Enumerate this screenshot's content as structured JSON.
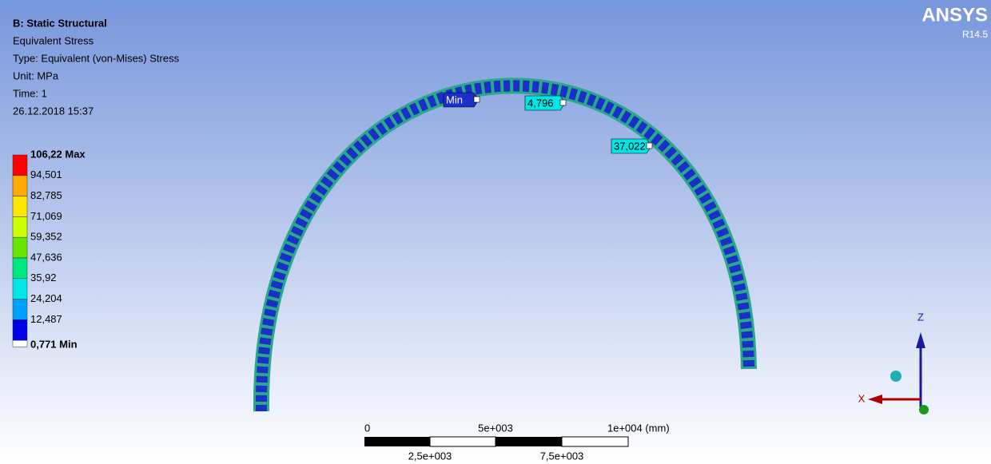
{
  "header": {
    "title": "B: Static Structural",
    "lines": [
      "Equivalent Stress",
      "Type: Equivalent (von-Mises) Stress",
      "Unit: MPa",
      "Time: 1",
      "26.12.2018 15:37"
    ]
  },
  "logo": {
    "name": "ANSYS",
    "version": "R14.5"
  },
  "legend": {
    "labels": [
      "106,22 Max",
      "94,501",
      "82,785",
      "71,069",
      "59,352",
      "47,636",
      "35,92",
      "24,204",
      "12,487",
      "0,771 Min"
    ],
    "colors": [
      "#ff0000",
      "#ffaa00",
      "#ffe600",
      "#ccff00",
      "#66e600",
      "#00e680",
      "#00e6e6",
      "#00a0ff",
      "#0000e6"
    ]
  },
  "probes": [
    {
      "label": "Min"
    },
    {
      "label": "4,796"
    },
    {
      "label": "37,022"
    }
  ],
  "scale_bar": {
    "top_labels": [
      "0",
      "5e+003",
      "1e+004 (mm)"
    ],
    "bottom_labels": [
      "2,5e+003",
      "7,5e+003"
    ]
  },
  "triad": {
    "axes": [
      "Z",
      "X"
    ]
  }
}
